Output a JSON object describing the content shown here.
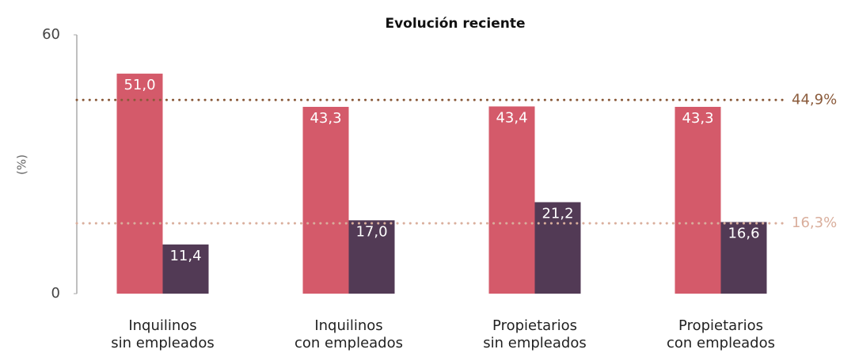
{
  "chart_data": {
    "type": "bar",
    "title": "Evolución reciente",
    "ylabel": "(%)",
    "categories": [
      [
        "Inquilinos",
        "sin empleados"
      ],
      [
        "Inquilinos",
        "con empleados"
      ],
      [
        "Propietarios",
        "sin empleados"
      ],
      [
        "Propietarios",
        "con empleados"
      ]
    ],
    "series": [
      {
        "color": "#d45a6a",
        "values": [
          51.0,
          43.3,
          43.4,
          43.3
        ],
        "value_labels": [
          "51,0",
          "43,3",
          "43,4",
          "43,3"
        ]
      },
      {
        "color": "#523a55",
        "values": [
          11.4,
          17.0,
          21.2,
          16.6
        ],
        "value_labels": [
          "11,4",
          "17,0",
          "21,2",
          "16,6"
        ]
      }
    ],
    "reference_lines": [
      {
        "value": 44.9,
        "label": "44,9%",
        "color": "#8a5a3a"
      },
      {
        "value": 16.3,
        "label": "16,3%",
        "color": "#d9ae9c"
      }
    ],
    "ylim": [
      0,
      60
    ],
    "yticks": [
      0,
      60
    ],
    "grid": false
  }
}
